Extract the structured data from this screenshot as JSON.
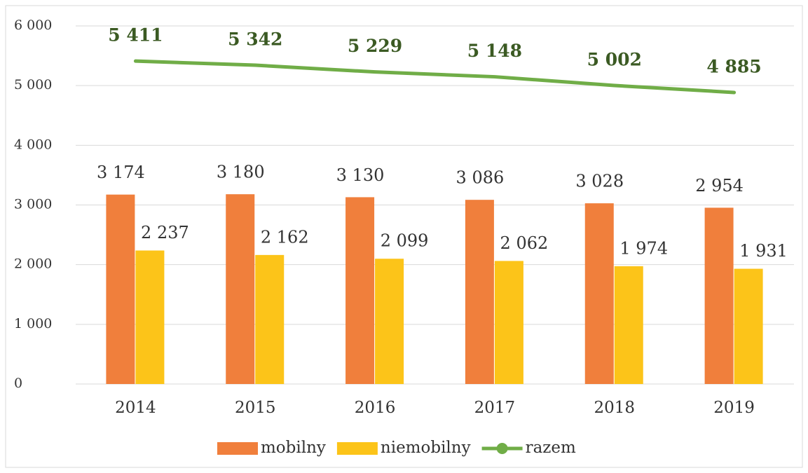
{
  "chart_data": {
    "type": "bar+line",
    "categories": [
      "2014",
      "2015",
      "2016",
      "2017",
      "2018",
      "2019"
    ],
    "series": [
      {
        "name": "mobilny",
        "type": "bar",
        "color": "#f07f3c",
        "values": [
          3174,
          3180,
          3130,
          3086,
          3028,
          2954
        ],
        "value_labels": [
          "3 174",
          "3 180",
          "3 130",
          "3 086",
          "3 028",
          "2 954"
        ]
      },
      {
        "name": "niemobilny",
        "type": "bar",
        "color": "#fcc419",
        "values": [
          2237,
          2162,
          2099,
          2062,
          1974,
          1931
        ],
        "value_labels": [
          "2 237",
          "2 162",
          "2 099",
          "2 062",
          "1 974",
          "1 931"
        ]
      },
      {
        "name": "razem",
        "type": "line",
        "color": "#70ad47",
        "values": [
          5411,
          5342,
          5229,
          5148,
          5002,
          4885
        ],
        "value_labels": [
          "5 411",
          "5 342",
          "5 229",
          "5 148",
          "5 002",
          "4 885"
        ]
      }
    ],
    "ylim": [
      0,
      6000
    ],
    "yticks": [
      {
        "value": 0,
        "label": "0"
      },
      {
        "value": 1000,
        "label": "1 000"
      },
      {
        "value": 2000,
        "label": "2 000"
      },
      {
        "value": 3000,
        "label": "3 000"
      },
      {
        "value": 4000,
        "label": "4 000"
      },
      {
        "value": 5000,
        "label": "5 000"
      },
      {
        "value": 6000,
        "label": "6 000"
      }
    ],
    "grid": true,
    "legend": "bottom"
  }
}
